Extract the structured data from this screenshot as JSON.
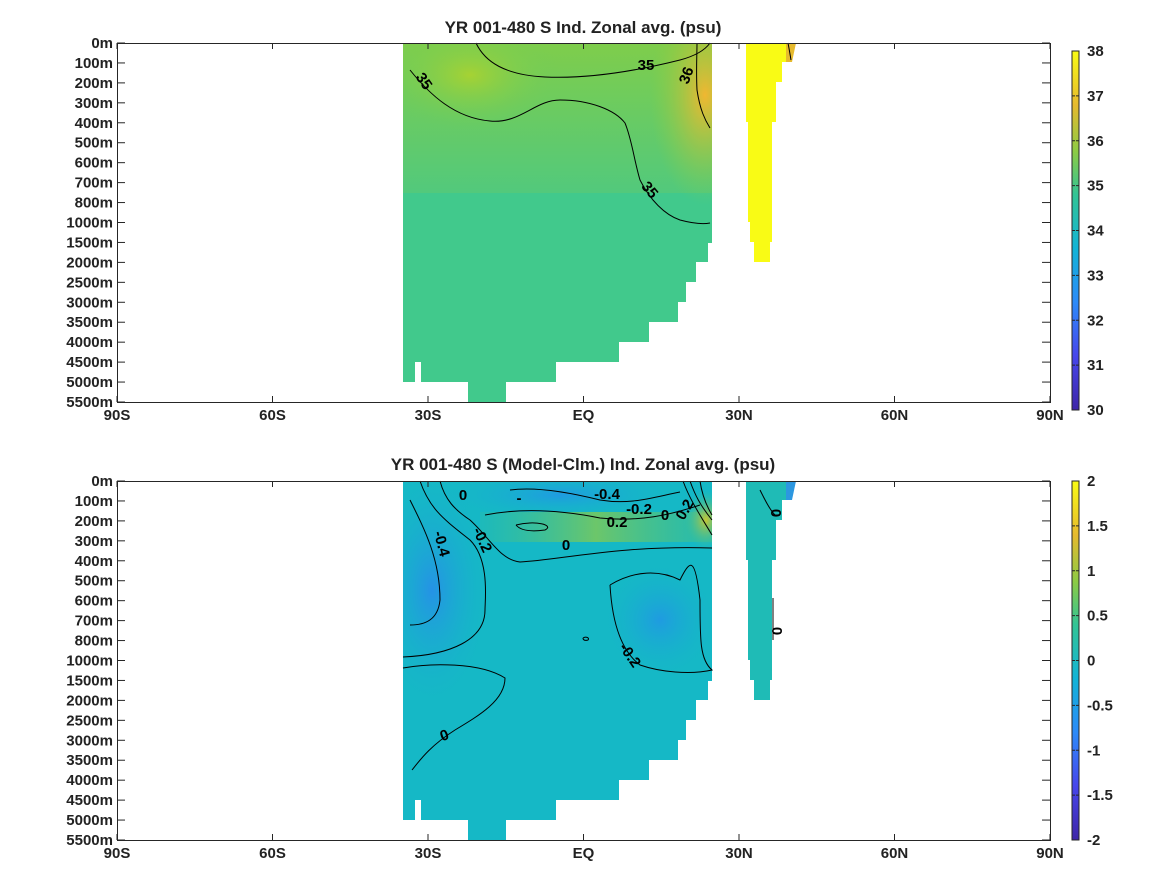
{
  "chart_data": [
    {
      "type": "heatmap",
      "title": "YR 001-480 S Ind. Zonal avg. (psu)",
      "x_ticks": [
        "90S",
        "60S",
        "30S",
        "EQ",
        "30N",
        "60N",
        "90N"
      ],
      "x_range": [
        -90,
        90
      ],
      "y_ticks": [
        "0m",
        "100m",
        "200m",
        "300m",
        "400m",
        "500m",
        "600m",
        "700m",
        "800m",
        "1000m",
        "1500m",
        "2000m",
        "2500m",
        "3000m",
        "3500m",
        "4000m",
        "4500m",
        "5000m",
        "5500m"
      ],
      "colorbar": {
        "min": 30,
        "max": 38,
        "ticks": [
          "30",
          "31",
          "32",
          "33",
          "34",
          "35",
          "36",
          "37",
          "38"
        ]
      },
      "contour_labels": [
        "35",
        "35",
        "36",
        "35"
      ],
      "colors": {
        "base": "#41c98c",
        "high": "#ffff14",
        "mid": "#8fcf3e"
      }
    },
    {
      "type": "heatmap",
      "title": "YR 001-480 S (Model-Clm.) Ind. Zonal avg. (psu)",
      "x_ticks": [
        "90S",
        "60S",
        "30S",
        "EQ",
        "30N",
        "60N",
        "90N"
      ],
      "x_range": [
        -90,
        90
      ],
      "y_ticks": [
        "0m",
        "100m",
        "200m",
        "300m",
        "400m",
        "500m",
        "600m",
        "700m",
        "800m",
        "1000m",
        "1500m",
        "2000m",
        "2500m",
        "3000m",
        "3500m",
        "4000m",
        "4500m",
        "5000m",
        "5500m"
      ],
      "colorbar": {
        "min": -2,
        "max": 2,
        "ticks": [
          "-2",
          "-1.5",
          "-1",
          "-0.5",
          "0",
          "0.5",
          "1",
          "1.5",
          "2"
        ]
      },
      "contour_labels": [
        "0",
        "-",
        "-0.4",
        "-0.2",
        "0",
        "0.2",
        "0.2",
        "0",
        "-0.4",
        "-0.2",
        "0",
        "0",
        "-0.2",
        "0"
      ],
      "colors": {
        "base": "#15b8c6",
        "low": "#2c97e0",
        "high": "#9fcc3a"
      }
    }
  ]
}
